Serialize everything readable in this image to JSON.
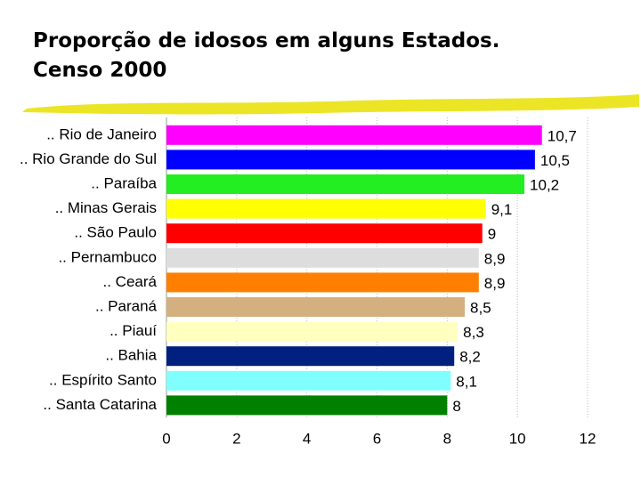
{
  "chart_data": {
    "type": "hbar",
    "title": [
      "Proporção de idosos em alguns Estados.",
      "Censo 2000"
    ],
    "categories": [
      ".. Rio de Janeiro",
      ".. Rio Grande do Sul",
      ".. Paraíba",
      ".. Minas Gerais",
      ".. São Paulo",
      ".. Pernambuco",
      ".. Ceará",
      ".. Paraná",
      ".. Piauí",
      ".. Bahia",
      ".. Espírito Santo",
      ".. Santa Catarina"
    ],
    "values": [
      10.7,
      10.5,
      10.2,
      9.1,
      9,
      8.9,
      8.9,
      8.5,
      8.3,
      8.2,
      8.1,
      8
    ],
    "value_labels": [
      "10,7",
      "10,5",
      "10,2",
      "9,1",
      "9",
      "8,9",
      "8,9",
      "8,5",
      "8,3",
      "8,2",
      "8,1",
      "8"
    ],
    "colors": [
      "#ff00ff",
      "#0000ff",
      "#22ee22",
      "#ffff00",
      "#ff0000",
      "#dddddd",
      "#ff8000",
      "#d4b080",
      "#ffffc0",
      "#002080",
      "#80ffff",
      "#008000"
    ],
    "xlim": [
      0,
      12
    ],
    "xticks": [
      0,
      2,
      4,
      6,
      8,
      10,
      12
    ],
    "grid": true
  }
}
